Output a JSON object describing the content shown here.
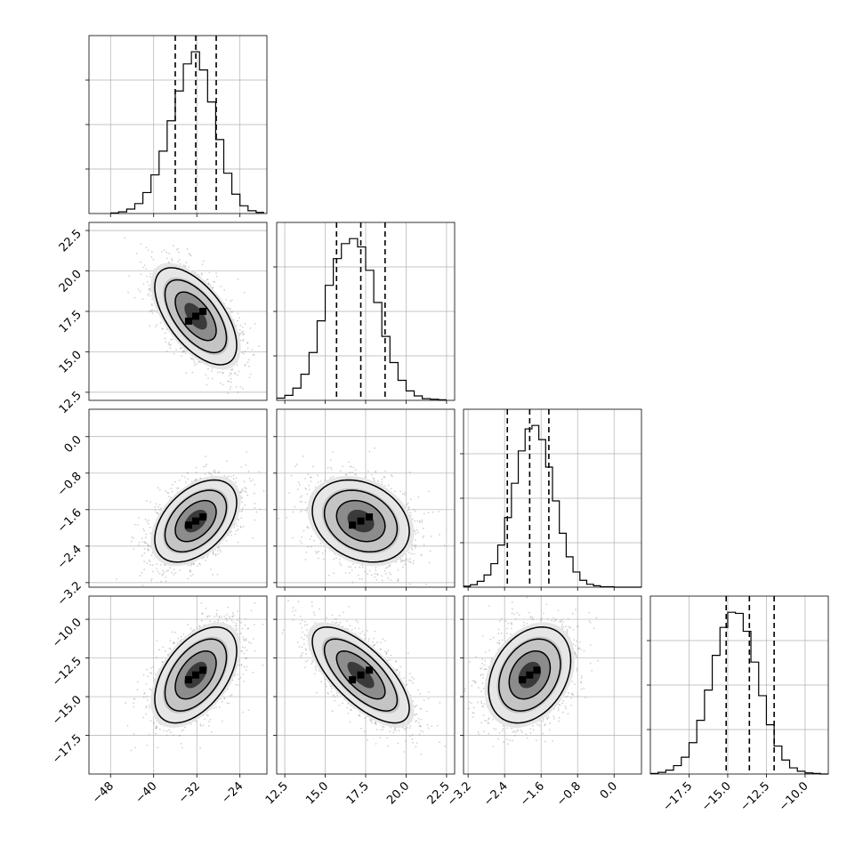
{
  "figure": {
    "type": "corner-plot",
    "dimensions": 4,
    "grid": true,
    "colors": {
      "line": "#000000",
      "grid": "#b0b0b0",
      "hist2d_cmap": "greys",
      "points": "#9a9a9a"
    }
  },
  "chart_data": [
    {
      "type": "histogram",
      "panel": "marginal-1",
      "xlim": [
        -52,
        -19
      ],
      "quantiles": [
        -36.0,
        -32.2,
        -28.4
      ],
      "bin_edges": [
        -48,
        -46.5,
        -45,
        -43.5,
        -42,
        -40.5,
        -39,
        -37.5,
        -36,
        -34.5,
        -33,
        -31.5,
        -30,
        -28.5,
        -27,
        -25.5,
        -24,
        -22.5,
        -21,
        -19.5
      ],
      "counts": [
        1,
        3,
        8,
        18,
        38,
        70,
        113,
        168,
        222,
        271,
        293,
        260,
        202,
        134,
        73,
        35,
        14,
        5,
        2
      ]
    },
    {
      "type": "histogram",
      "panel": "marginal-2",
      "xlim": [
        12.0,
        23.0
      ],
      "xticks": [
        "12.5",
        "15.0",
        "17.5",
        "20.0",
        "22.5"
      ],
      "quantiles": [
        15.7,
        17.2,
        18.7
      ],
      "bin_edges": [
        12.0,
        12.5,
        13.0,
        13.5,
        14.0,
        14.5,
        15.0,
        15.5,
        16.0,
        16.5,
        17.0,
        17.5,
        18.0,
        18.5,
        19.0,
        19.5,
        20.0,
        20.5,
        21.0,
        21.5,
        22.0,
        22.5
      ],
      "counts": [
        4,
        9,
        22,
        47,
        86,
        143,
        207,
        255,
        282,
        291,
        276,
        234,
        176,
        115,
        68,
        36,
        17,
        8,
        3,
        2,
        1
      ]
    },
    {
      "type": "histogram",
      "panel": "marginal-3",
      "xlim": [
        -3.3,
        0.6
      ],
      "xticks": [
        "−3.2",
        "−2.4",
        "−1.6",
        "−0.8",
        "0.0"
      ],
      "quantiles": [
        -2.34,
        -1.85,
        -1.43
      ],
      "bin_edges": [
        -3.3,
        -3.15,
        -3.0,
        -2.85,
        -2.7,
        -2.55,
        -2.4,
        -2.25,
        -2.1,
        -1.95,
        -1.8,
        -1.65,
        -1.5,
        -1.35,
        -1.2,
        -1.05,
        -0.9,
        -0.75,
        -0.6,
        -0.45,
        -0.3,
        -0.15,
        0.0,
        0.15,
        0.3,
        0.45,
        0.6
      ],
      "counts": [
        2,
        5,
        12,
        25,
        48,
        86,
        142,
        212,
        278,
        323,
        330,
        301,
        245,
        176,
        110,
        62,
        31,
        14,
        6,
        3,
        1,
        1,
        0,
        0,
        0,
        0
      ]
    },
    {
      "type": "histogram",
      "panel": "marginal-4",
      "xlim": [
        -20.0,
        -8.5
      ],
      "xticks": [
        "−17.5",
        "−15.0",
        "−12.5",
        "−10.0"
      ],
      "quantiles": [
        -15.1,
        -13.6,
        -12.0
      ],
      "bin_edges": [
        -20.0,
        -19.5,
        -19.0,
        -18.5,
        -18.0,
        -17.5,
        -17.0,
        -16.5,
        -16.0,
        -15.5,
        -15.0,
        -14.5,
        -14.0,
        -13.5,
        -13.0,
        -12.5,
        -12.0,
        -11.5,
        -11.0,
        -10.5,
        -10.0,
        -9.5,
        -9.0,
        -8.5
      ],
      "counts": [
        1,
        3,
        7,
        15,
        30,
        56,
        96,
        150,
        212,
        262,
        289,
        287,
        255,
        200,
        140,
        88,
        50,
        25,
        11,
        5,
        2,
        1,
        0
      ]
    },
    {
      "type": "scatter",
      "panel": "joint-2-1",
      "xlim": [
        -52,
        -19
      ],
      "ylim": [
        12.0,
        23.0
      ],
      "yticks": [
        "12.5",
        "15.0",
        "17.5",
        "20.0",
        "22.5"
      ],
      "center": [
        -32.2,
        17.2
      ],
      "std": [
        3.8,
        1.5
      ],
      "rho": -0.6
    },
    {
      "type": "scatter",
      "panel": "joint-3-1",
      "xlim": [
        -52,
        -19
      ],
      "ylim": [
        -3.3,
        0.6
      ],
      "yticks": [
        "−3.2",
        "−2.4",
        "−1.6",
        "−0.8",
        "0.0"
      ],
      "center": [
        -32.2,
        -1.85
      ],
      "std": [
        3.8,
        0.45
      ],
      "rho": 0.45
    },
    {
      "type": "scatter",
      "panel": "joint-3-2",
      "xlim": [
        12.0,
        23.0
      ],
      "ylim": [
        -3.3,
        0.6
      ],
      "center": [
        17.2,
        -1.85
      ],
      "std": [
        1.5,
        0.45
      ],
      "rho": -0.25
    },
    {
      "type": "scatter",
      "panel": "joint-4-1",
      "xlim": [
        -52,
        -19
      ],
      "ylim": [
        -20.0,
        -8.5
      ],
      "yticks": [
        "−17.5",
        "−15.0",
        "−12.5",
        "−10.0"
      ],
      "xticks": [
        "−48",
        "−40",
        "−32",
        "−24"
      ],
      "center": [
        -32.2,
        -13.6
      ],
      "std": [
        3.8,
        1.55
      ],
      "rho": 0.5
    },
    {
      "type": "scatter",
      "panel": "joint-4-2",
      "xlim": [
        12.0,
        23.0
      ],
      "ylim": [
        -20.0,
        -8.5
      ],
      "xticks": [
        "12.5",
        "15.0",
        "17.5",
        "20.0",
        "22.5"
      ],
      "center": [
        17.2,
        -13.6
      ],
      "std": [
        1.5,
        1.55
      ],
      "rho": -0.7
    },
    {
      "type": "scatter",
      "panel": "joint-4-3",
      "xlim": [
        -3.3,
        0.6
      ],
      "ylim": [
        -20.0,
        -8.5
      ],
      "xticks": [
        "−3.2",
        "−2.4",
        "−1.6",
        "−0.8",
        "0.0"
      ],
      "center": [
        -1.85,
        -13.6
      ],
      "std": [
        0.45,
        1.55
      ],
      "rho": 0.3
    }
  ]
}
